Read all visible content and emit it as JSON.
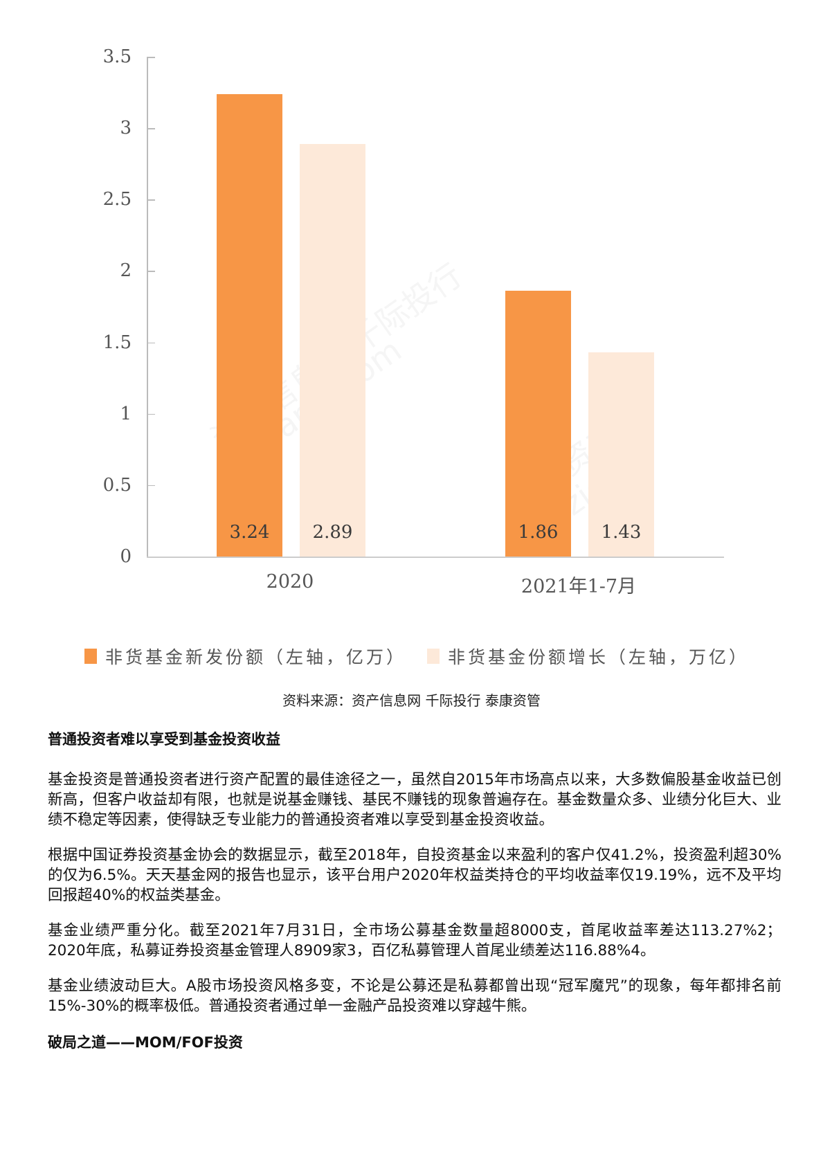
{
  "chart_data": {
    "type": "bar",
    "title": "",
    "xlabel": "",
    "ylabel": "",
    "ylim": [
      0,
      3.5
    ],
    "yticks": [
      "0",
      "0.5",
      "1",
      "1.5",
      "2",
      "2.5",
      "3",
      "3.5"
    ],
    "ytick_values": [
      0,
      0.5,
      1,
      1.5,
      2,
      2.5,
      3,
      3.5
    ],
    "grid": false,
    "legend_position": "bottom",
    "categories": [
      "2020",
      "2021年1-7月"
    ],
    "series": [
      {
        "name": "非货基金新发份额（左轴，亿万）",
        "color": "#f79646",
        "values": [
          3.24,
          1.86
        ],
        "labels": [
          "3.24",
          "1.86"
        ]
      },
      {
        "name": "非货基金份额增长（左轴，万亿）",
        "color": "#fde9d9",
        "values": [
          2.89,
          1.43
        ],
        "labels": [
          "2.89",
          "1.43"
        ]
      }
    ]
  },
  "watermarks": [
    "资产信息网 千际投行",
    "zichanxi.com",
    "资产信",
    "zich"
  ],
  "source": "资料来源：资产信息网 千际投行 泰康资管",
  "article": {
    "heading1": "普通投资者难以享受到基金投资收益",
    "paragraphs": [
      "基金投资是普通投资者进行资产配置的最佳途径之一，虽然自2015年市场高点以来，大多数偏股基金收益已创新高，但客户收益却有限，也就是说基金赚钱、基民不赚钱的现象普遍存在。基金数量众多、业绩分化巨大、业绩不稳定等因素，使得缺乏专业能力的普通投资者难以享受到基金投资收益。",
      "根据中国证券投资基金协会的数据显示，截至2018年，自投资基金以来盈利的客户仅41.2%，投资盈利超30%的仅为6.5%。天天基金网的报告也显示，该平台用户2020年权益类持仓的平均收益率仅19.19%，远不及平均回报超40%的权益类基金。",
      "基金业绩严重分化。截至2021年7月31日，全市场公募基金数量超8000支，首尾收益率差达113.27%2；2020年底，私募证券投资基金管理人8909家3，百亿私募管理人首尾业绩差达116.88%4。",
      "基金业绩波动巨大。A股市场投资风格多变，不论是公募还是私募都曾出现“冠军魔咒”的现象，每年都排名前15%-30%的概率极低。普通投资者通过单一金融产品投资难以穿越牛熊。"
    ],
    "heading2": "破局之道——MOM/FOF投资"
  }
}
